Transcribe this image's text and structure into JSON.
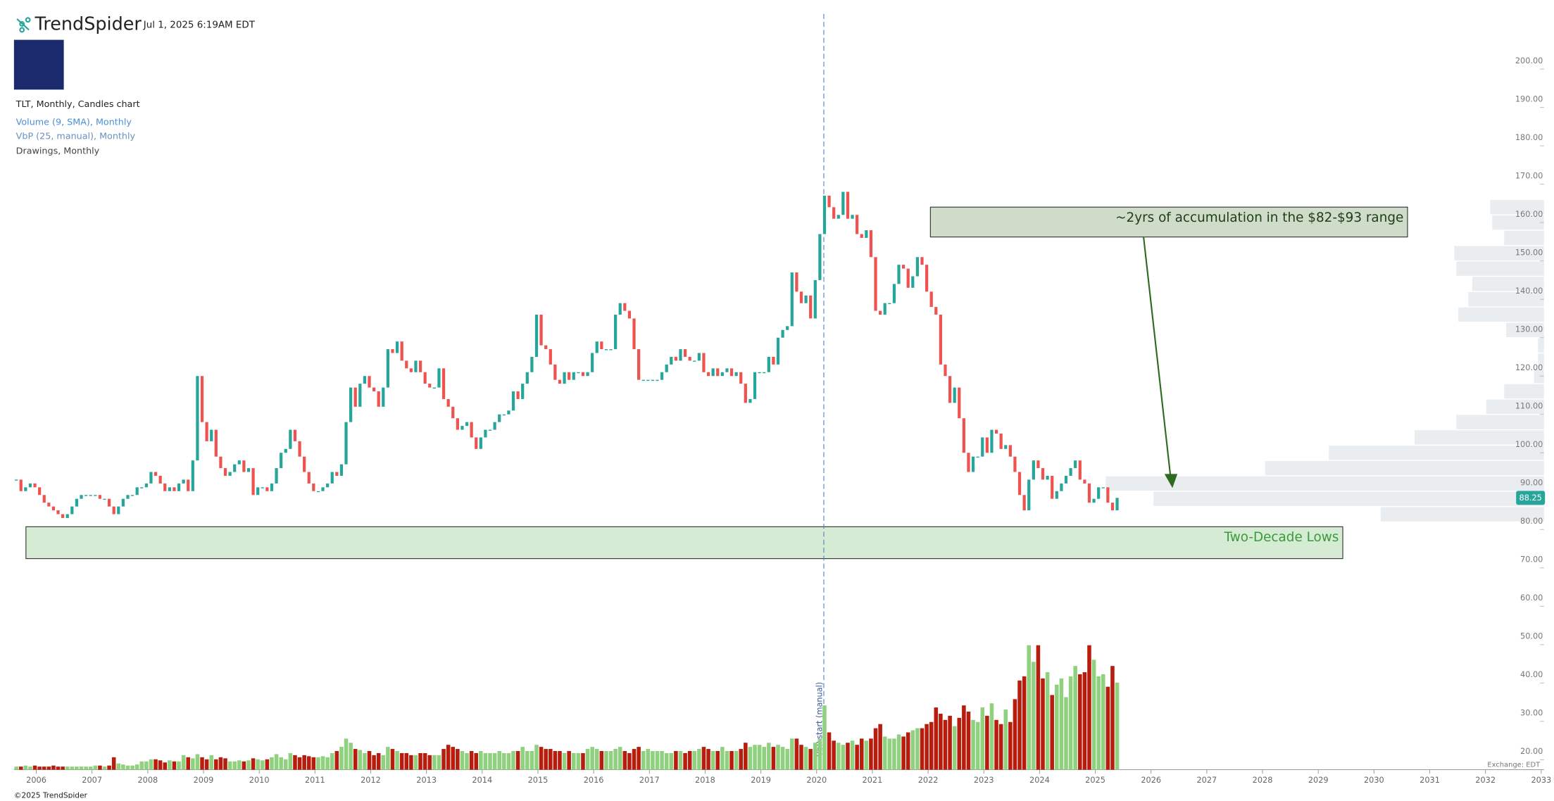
{
  "header": {
    "brand": "TrendSpider",
    "timestamp": "Jul 1, 2025 6:19AM EDT",
    "chart_name": "TLT, Monthly, Candles chart",
    "indicators": [
      "Volume (9, SMA), Monthly",
      "VbP (25, manual), Monthly",
      "Drawings, Monthly"
    ]
  },
  "footer": {
    "copyright": "©2025 TrendSpider",
    "exchange": "Exchange: EDT"
  },
  "chart_data": {
    "type": "candlestick",
    "up_color": "#26a69a",
    "down_color": "#ef5350",
    "volume_up_color": "#8fd17e",
    "volume_down_color": "#b71c0c",
    "xlim": [
      2005.6,
      2033.05
    ],
    "xticks": [
      2006,
      2007,
      2008,
      2009,
      2010,
      2011,
      2012,
      2013,
      2014,
      2015,
      2016,
      2017,
      2018,
      2019,
      2020,
      2021,
      2022,
      2023,
      2024,
      2025,
      2026,
      2027,
      2028,
      2029,
      2030,
      2031,
      2032,
      2033
    ],
    "ylim": [
      17.4,
      218
    ],
    "yticks": [
      {
        "value": 20,
        "label": "20.00"
      },
      {
        "value": 30,
        "label": "30.00"
      },
      {
        "value": 40,
        "label": "40.00"
      },
      {
        "value": 50,
        "label": "50.00"
      },
      {
        "value": 60,
        "label": "60.00"
      },
      {
        "value": 70,
        "label": "70.00"
      },
      {
        "value": 80,
        "label": "80.00"
      },
      {
        "value": 90,
        "label": "90.00"
      },
      {
        "value": 100,
        "label": "100.00"
      },
      {
        "value": 110,
        "label": "110.00"
      },
      {
        "value": 120,
        "label": "120.00"
      },
      {
        "value": 130,
        "label": "130.00"
      },
      {
        "value": 140,
        "label": "140.00"
      },
      {
        "value": 150,
        "label": "150.00"
      },
      {
        "value": 160,
        "label": "160.00"
      },
      {
        "value": 170,
        "label": "170.00"
      },
      {
        "value": 180,
        "label": "180.00"
      },
      {
        "value": 190,
        "label": "190.00"
      },
      {
        "value": 200,
        "label": "200.00"
      }
    ],
    "grid": false,
    "close": [
      93,
      90,
      91,
      92,
      91,
      89,
      87,
      86,
      85,
      84,
      83,
      84,
      86,
      88,
      89,
      89,
      89,
      89,
      88,
      88,
      86,
      84,
      86,
      88,
      89,
      89,
      91,
      91,
      92,
      95,
      94,
      92,
      90,
      91,
      90,
      92,
      93,
      90,
      98,
      120,
      108,
      103,
      106,
      99,
      96,
      94,
      95,
      97,
      98,
      95,
      96,
      89,
      91,
      91,
      90,
      92,
      96,
      100,
      101,
      106,
      103,
      99,
      95,
      92,
      90,
      90,
      91,
      92,
      95,
      94,
      97,
      108,
      117,
      112,
      118,
      120,
      117,
      116,
      112,
      117,
      127,
      126,
      129,
      124,
      122,
      121,
      124,
      121,
      118,
      117,
      117,
      122,
      114,
      112,
      109,
      106,
      107,
      108,
      104,
      101,
      104,
      106,
      106,
      108,
      110,
      110,
      111,
      116,
      114,
      118,
      121,
      125,
      136,
      128,
      127,
      123,
      119,
      118,
      121,
      119,
      121,
      121,
      120,
      121,
      126,
      129,
      127,
      127,
      127,
      136,
      139,
      137,
      135,
      127,
      119,
      119,
      119,
      119,
      119,
      121,
      123,
      125,
      124,
      127,
      125,
      124,
      124,
      126,
      121,
      120,
      122,
      120,
      121,
      122,
      120,
      121,
      118,
      113,
      114,
      121,
      121,
      121,
      125,
      123,
      130,
      132,
      133,
      147,
      142,
      139,
      141,
      135,
      145,
      157,
      167,
      164,
      161,
      162,
      168,
      161,
      162,
      157,
      156,
      158,
      151,
      137,
      136,
      139,
      139,
      144,
      149,
      148,
      143,
      146,
      151,
      149,
      142,
      138,
      136,
      123,
      120,
      113,
      117,
      109,
      100,
      95,
      99,
      99,
      104,
      100,
      106,
      105,
      101,
      102,
      99,
      95,
      89,
      85,
      93,
      98,
      96,
      93,
      94,
      88,
      90,
      92,
      94,
      96,
      98,
      93,
      92,
      87,
      88,
      91,
      91,
      87,
      85,
      88.25
    ],
    "volume": [
      3,
      3,
      4,
      3,
      4,
      3,
      3,
      3,
      4,
      3,
      3,
      3,
      3,
      3,
      3,
      3,
      3,
      4,
      4,
      3,
      4,
      12,
      6,
      5,
      4,
      4,
      5,
      8,
      8,
      10,
      10,
      9,
      7,
      9,
      8,
      8,
      14,
      12,
      11,
      15,
      12,
      10,
      14,
      10,
      12,
      11,
      8,
      8,
      9,
      8,
      9,
      11,
      10,
      9,
      10,
      12,
      15,
      12,
      10,
      16,
      14,
      12,
      14,
      13,
      12,
      12,
      13,
      12,
      16,
      18,
      22,
      30,
      26,
      20,
      19,
      16,
      18,
      14,
      16,
      14,
      22,
      20,
      18,
      16,
      16,
      14,
      14,
      16,
      16,
      14,
      14,
      14,
      20,
      24,
      22,
      20,
      18,
      16,
      18,
      16,
      18,
      16,
      16,
      16,
      18,
      16,
      16,
      18,
      18,
      22,
      18,
      18,
      24,
      22,
      20,
      20,
      18,
      18,
      16,
      18,
      16,
      16,
      16,
      20,
      22,
      20,
      18,
      18,
      18,
      20,
      22,
      18,
      16,
      20,
      22,
      18,
      20,
      18,
      18,
      18,
      16,
      16,
      18,
      18,
      16,
      18,
      18,
      20,
      22,
      20,
      18,
      18,
      22,
      18,
      18,
      18,
      20,
      26,
      22,
      24,
      24,
      22,
      26,
      22,
      24,
      22,
      20,
      30,
      30,
      24,
      22,
      20,
      26,
      30,
      62,
      36,
      28,
      26,
      24,
      26,
      28,
      24,
      30,
      28,
      30,
      40,
      44,
      32,
      30,
      30,
      34,
      32,
      36,
      38,
      40,
      40,
      44,
      46,
      60,
      54,
      48,
      52,
      42,
      50,
      62,
      56,
      48,
      46,
      60,
      52,
      64,
      48,
      44,
      58,
      46,
      68,
      86,
      90,
      120,
      104,
      120,
      88,
      94,
      72,
      82,
      88,
      70,
      90,
      100,
      92,
      94,
      120,
      106,
      90,
      92,
      80,
      100,
      84
    ],
    "last_price": 88.25,
    "vbp": {
      "bins": [
        82,
        86,
        90,
        94,
        98,
        102,
        106,
        110,
        114,
        118,
        122,
        126,
        130,
        134,
        138,
        142,
        146,
        150,
        154,
        158,
        162,
        166
      ],
      "values": [
        164,
        392,
        440,
        280,
        216,
        130,
        88,
        58,
        40,
        10,
        6,
        6,
        38,
        86,
        76,
        72,
        88,
        90,
        40,
        52,
        54
      ]
    },
    "annotations": {
      "accumulation": "~2yrs of accumulation in the $82-$93 range",
      "lows": "Two-Decade Lows",
      "vbp_start": "VbP start (manual)"
    }
  }
}
